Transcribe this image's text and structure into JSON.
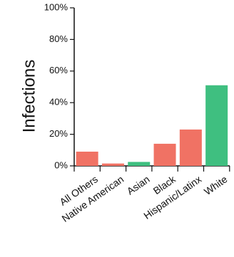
{
  "chart_data": {
    "type": "bar",
    "ylabel": "Infections",
    "ylim": [
      0,
      100
    ],
    "yticks": [
      0,
      20,
      40,
      60,
      80,
      100
    ],
    "ytick_labels": [
      "0%",
      "20%",
      "40%",
      "60%",
      "80%",
      "100%"
    ],
    "categories": [
      "All Others",
      "Native American",
      "Asian",
      "Black",
      "Hispanic/Latinx",
      "White"
    ],
    "values": [
      9,
      1.5,
      2.5,
      14,
      23,
      51
    ],
    "bar_colors": [
      "#f07264",
      "#f07264",
      "#3fbf80",
      "#f07264",
      "#f07264",
      "#3fbf80"
    ],
    "grid": false,
    "legend": "none"
  }
}
